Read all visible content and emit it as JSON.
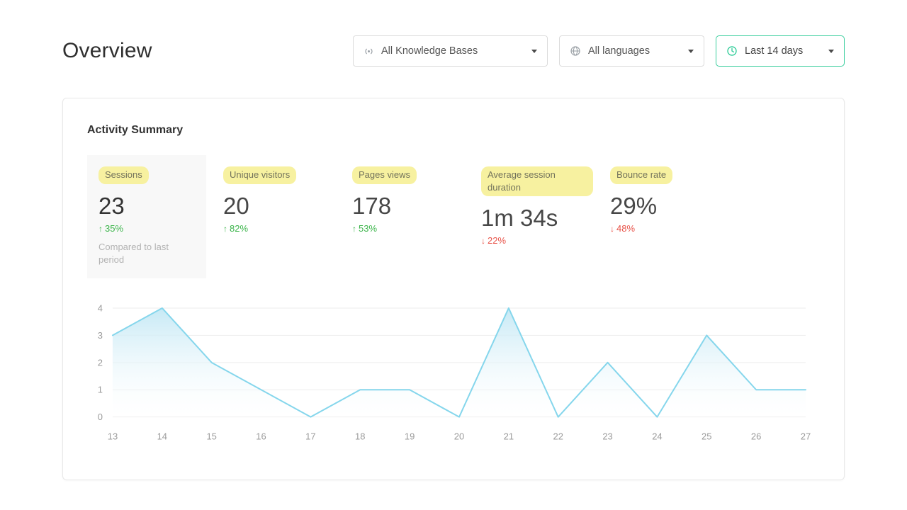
{
  "page": {
    "title": "Overview"
  },
  "filters": {
    "knowledge_bases": {
      "label": "All Knowledge Bases",
      "icon": "knowledge-base-signal-icon"
    },
    "languages": {
      "label": "All languages",
      "icon": "globe-icon"
    },
    "date_range": {
      "label": "Last 14 days",
      "icon": "clock-icon"
    }
  },
  "activity": {
    "title": "Activity Summary",
    "metrics": [
      {
        "label": "Sessions",
        "value": "23",
        "arrow": "↑",
        "change": "35%",
        "direction": "up",
        "note": "Compared to last period"
      },
      {
        "label": "Unique visitors",
        "value": "20",
        "arrow": "↑",
        "change": "82%",
        "direction": "up"
      },
      {
        "label": "Pages views",
        "value": "178",
        "arrow": "↑",
        "change": "53%",
        "direction": "up"
      },
      {
        "label": "Average session duration",
        "value": "1m 34s",
        "arrow": "↓",
        "change": "22%",
        "direction": "down"
      },
      {
        "label": "Bounce rate",
        "value": "29%",
        "arrow": "↓",
        "change": "48%",
        "direction": "down"
      }
    ]
  },
  "chart_data": {
    "type": "area",
    "title": "",
    "xlabel": "",
    "ylabel": "",
    "x": [
      13,
      14,
      15,
      16,
      17,
      18,
      19,
      20,
      21,
      22,
      23,
      24,
      25,
      26,
      27
    ],
    "values": [
      3,
      4,
      2,
      1,
      0,
      1,
      1,
      0,
      4,
      0,
      2,
      0,
      3,
      1,
      1
    ],
    "ylim": [
      0,
      4
    ],
    "yticks": [
      0,
      1,
      2,
      3,
      4
    ],
    "grid": true,
    "legend": false,
    "line_color": "#85d6ec",
    "fill_top": "#c6e9f5",
    "fill_bottom": "#ffffff"
  },
  "colors": {
    "positive": "#3cb54b",
    "negative": "#e8544a",
    "highlight": "#f7f1a0",
    "accent": "#3bcf9e"
  }
}
